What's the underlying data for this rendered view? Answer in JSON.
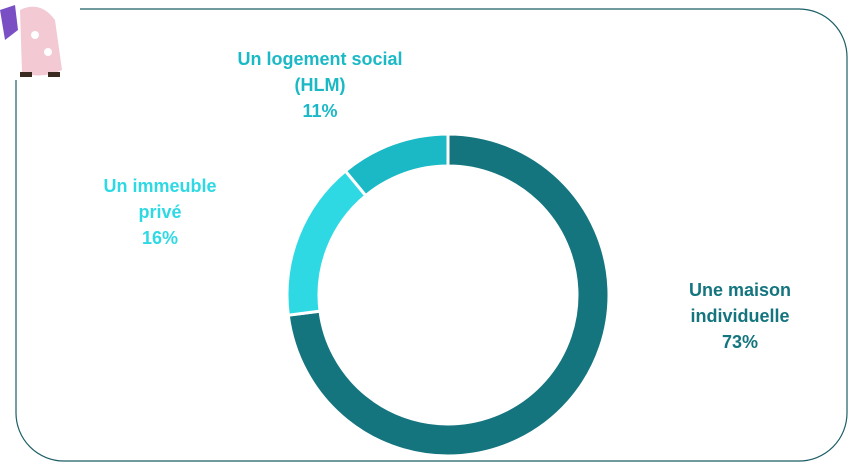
{
  "chart_data": {
    "type": "donut",
    "categories": [
      "Une maison individuelle",
      "Un immeuble privé",
      "Un logement social (HLM)"
    ],
    "values": [
      73,
      16,
      11
    ],
    "value_labels": [
      "73%",
      "16%",
      "11%"
    ],
    "colors": [
      "#14757f",
      "#2fd9e4",
      "#1bb9c6"
    ]
  }
}
